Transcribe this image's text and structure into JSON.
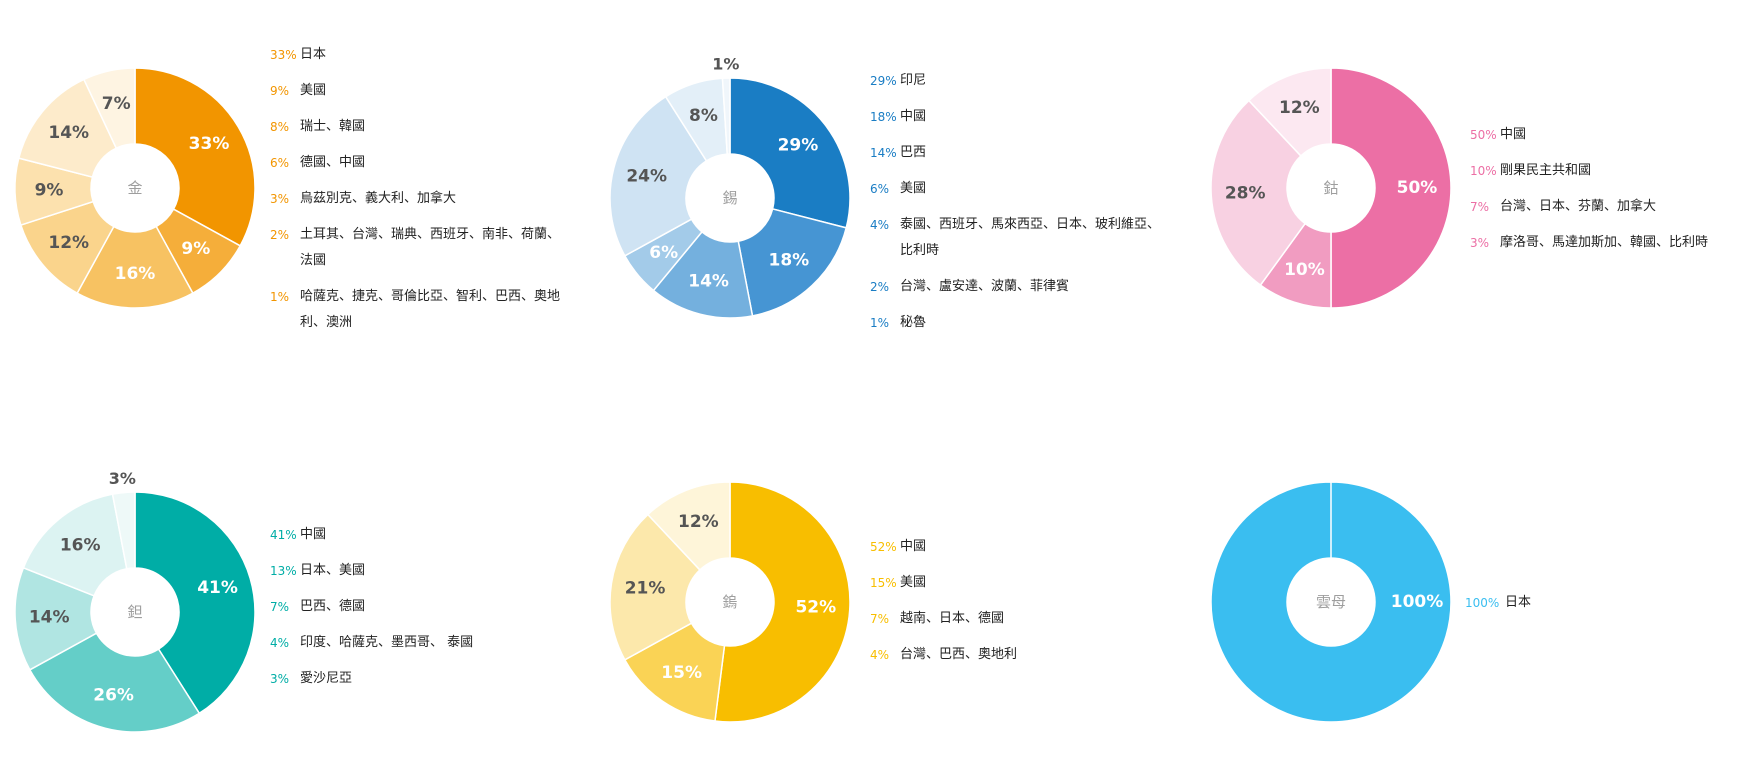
{
  "chart_data": [
    {
      "type": "pie",
      "center_label": "金",
      "color": "#F29500",
      "slices": [
        {
          "value": 33,
          "label": "33%",
          "color": "#F29500"
        },
        {
          "value": 9,
          "label": "9%",
          "color": "#F5AE3A"
        },
        {
          "value": 16,
          "label": "16%",
          "color": "#F7C262"
        },
        {
          "value": 12,
          "label": "12%",
          "color": "#FAD48C"
        },
        {
          "value": 9,
          "label": "9%",
          "color": "#FCE1AE"
        },
        {
          "value": 14,
          "label": "14%",
          "color": "#FDEBCB"
        },
        {
          "value": 7,
          "label": "7%",
          "color": "#FEF4E2"
        }
      ],
      "legend": [
        {
          "pct": "33%",
          "text": "日本"
        },
        {
          "pct": "9%",
          "text": "美國"
        },
        {
          "pct": "8%",
          "text": "瑞士、韓國"
        },
        {
          "pct": "6%",
          "text": "德國、中國"
        },
        {
          "pct": "3%",
          "text": "烏茲別克、義大利、加拿大"
        },
        {
          "pct": "2%",
          "text": "土耳其、台灣、瑞典、西班牙、南非、荷蘭、法國"
        },
        {
          "pct": "1%",
          "text": "哈薩克、捷克、哥倫比亞、智利、巴西、奧地利、澳洲"
        }
      ]
    },
    {
      "type": "pie",
      "center_label": "錫",
      "color": "#1A7DC4",
      "slices": [
        {
          "value": 29,
          "label": "29%",
          "color": "#1A7DC4"
        },
        {
          "value": 18,
          "label": "18%",
          "color": "#4695D3"
        },
        {
          "value": 14,
          "label": "14%",
          "color": "#74B0DE"
        },
        {
          "value": 6,
          "label": "6%",
          "color": "#A3CBE9"
        },
        {
          "value": 24,
          "label": "24%",
          "color": "#CFE3F3"
        },
        {
          "value": 8,
          "label": "8%",
          "color": "#E3EFF8"
        },
        {
          "value": 1,
          "label": "1%",
          "color": "#F0F6FB"
        }
      ],
      "legend": [
        {
          "pct": "29%",
          "text": "印尼"
        },
        {
          "pct": "18%",
          "text": "中國"
        },
        {
          "pct": "14%",
          "text": "巴西"
        },
        {
          "pct": "6%",
          "text": "美國"
        },
        {
          "pct": "4%",
          "text": "泰國、西班牙、馬來西亞、日本、玻利維亞、比利時"
        },
        {
          "pct": "2%",
          "text": "台灣、盧安達、波蘭、菲律賓"
        },
        {
          "pct": "1%",
          "text": "秘魯"
        }
      ]
    },
    {
      "type": "pie",
      "center_label": "鈷",
      "color": "#EC6FA5",
      "slices": [
        {
          "value": 50,
          "label": "50%",
          "color": "#EC6FA5"
        },
        {
          "value": 10,
          "label": "10%",
          "color": "#F19CC1"
        },
        {
          "value": 28,
          "label": "28%",
          "color": "#F8D1E2"
        },
        {
          "value": 12,
          "label": "12%",
          "color": "#FCE8F1"
        }
      ],
      "legend": [
        {
          "pct": "50%",
          "text": "中國"
        },
        {
          "pct": "10%",
          "text": "剛果民主共和國"
        },
        {
          "pct": "7%",
          "text": "台灣、日本、芬蘭、加拿大"
        },
        {
          "pct": "3%",
          "text": "摩洛哥、馬達加斯加、韓國、比利時"
        }
      ]
    },
    {
      "type": "pie",
      "center_label": "鉭",
      "color": "#00ADA6",
      "slices": [
        {
          "value": 41,
          "label": "41%",
          "color": "#00ADA6"
        },
        {
          "value": 26,
          "label": "26%",
          "color": "#64CEC8"
        },
        {
          "value": 14,
          "label": "14%",
          "color": "#B0E5E2"
        },
        {
          "value": 16,
          "label": "16%",
          "color": "#DCF3F2"
        },
        {
          "value": 3,
          "label": "3%",
          "color": "#EEF9F8"
        }
      ],
      "legend": [
        {
          "pct": "41%",
          "text": "中國"
        },
        {
          "pct": "13%",
          "text": "日本、美國"
        },
        {
          "pct": "7%",
          "text": "巴西、德國"
        },
        {
          "pct": "4%",
          "text": "印度、哈薩克、墨西哥、 泰國"
        },
        {
          "pct": "3%",
          "text": "愛沙尼亞"
        }
      ]
    },
    {
      "type": "pie",
      "center_label": "鎢",
      "color": "#F8BE00",
      "slices": [
        {
          "value": 52,
          "label": "52%",
          "color": "#F8BE00"
        },
        {
          "value": 15,
          "label": "15%",
          "color": "#FAD355"
        },
        {
          "value": 21,
          "label": "21%",
          "color": "#FCE8AB"
        },
        {
          "value": 12,
          "label": "12%",
          "color": "#FEF5D9"
        }
      ],
      "legend": [
        {
          "pct": "52%",
          "text": "中國"
        },
        {
          "pct": "15%",
          "text": "美國"
        },
        {
          "pct": "7%",
          "text": "越南、日本、德國"
        },
        {
          "pct": "4%",
          "text": "台灣、巴西、奧地利"
        }
      ]
    },
    {
      "type": "pie",
      "center_label": "雲母",
      "color": "#3ABEF0",
      "slices": [
        {
          "value": 100,
          "label": "100%",
          "color": "#3ABEF0"
        }
      ],
      "legend": [
        {
          "pct": "100%",
          "text": "日本"
        }
      ]
    }
  ]
}
